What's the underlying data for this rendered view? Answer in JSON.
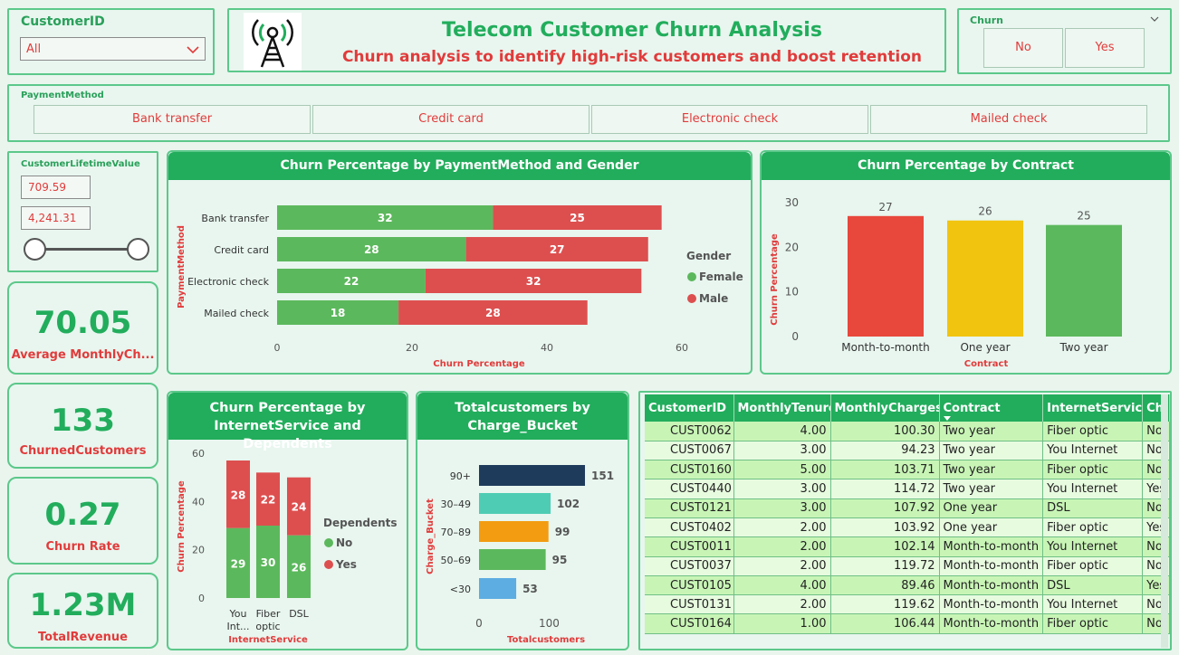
{
  "header": {
    "title": "Telecom Customer Churn Analysis",
    "subtitle": "Churn analysis to identify high-risk customers and boost retention"
  },
  "customer_slicer": {
    "label": "CustomerID",
    "selected": "All"
  },
  "churn_slicer": {
    "label": "Churn",
    "options": [
      "No",
      "Yes"
    ]
  },
  "payment_slicer": {
    "label": "PaymentMethod",
    "options": [
      "Bank transfer",
      "Credit card",
      "Electronic check",
      "Mailed check"
    ]
  },
  "clv_slicer": {
    "label": "CustomerLifetimeValue",
    "min": "709.59",
    "max": "4,241.31"
  },
  "kpis": [
    {
      "value": "70.05",
      "label": "Average MonthlyCh..."
    },
    {
      "value": "133",
      "label": "ChurnedCustomers"
    },
    {
      "value": "0.27",
      "label": "Churn Rate"
    },
    {
      "value": "1.23M",
      "label": "TotalRevenue"
    }
  ],
  "chart_data": [
    {
      "type": "bar",
      "orientation": "horizontal-stacked",
      "title": "Churn Percentage by PaymentMethod and Gender",
      "xlabel": "Churn Percentage",
      "ylabel": "PaymentMethod",
      "categories": [
        "Bank transfer",
        "Credit card",
        "Electronic check",
        "Mailed check"
      ],
      "series": [
        {
          "name": "Female",
          "values": [
            32,
            28,
            22,
            18
          ],
          "color": "#5cb85c"
        },
        {
          "name": "Male",
          "values": [
            25,
            27,
            32,
            28
          ],
          "color": "#dd4f4f"
        }
      ],
      "xlim": [
        0,
        60
      ],
      "xticks": [
        "0",
        "20",
        "40",
        "60"
      ],
      "legend_title": "Gender",
      "legend_position": "right"
    },
    {
      "type": "bar",
      "title": "Churn Percentage by Contract",
      "xlabel": "Contract",
      "ylabel": "Churn Percentage",
      "categories": [
        "Month-to-month",
        "One year",
        "Two year"
      ],
      "values": [
        27,
        26,
        25
      ],
      "colors": [
        "#e8473b",
        "#f1c40f",
        "#5cb85c"
      ],
      "ylim": [
        0,
        30
      ],
      "yticks": [
        "0",
        "10",
        "20",
        "30"
      ]
    },
    {
      "type": "bar",
      "orientation": "vertical-stacked",
      "title_line1": "Churn Percentage by",
      "title_line2": "InternetService and Dependents",
      "xlabel": "InternetService",
      "ylabel": "Churn Percentage",
      "categories": [
        [
          "You",
          "Int..."
        ],
        [
          "Fiber",
          "optic"
        ],
        [
          "DSL"
        ]
      ],
      "series": [
        {
          "name": "No",
          "values": [
            29,
            30,
            26
          ],
          "color": "#5cb85c"
        },
        {
          "name": "Yes",
          "values": [
            28,
            22,
            24
          ],
          "color": "#dd4f4f"
        }
      ],
      "ylim": [
        0,
        60
      ],
      "yticks": [
        "0",
        "20",
        "40",
        "60"
      ],
      "legend_title": "Dependents",
      "legend_position": "right"
    },
    {
      "type": "bar",
      "orientation": "horizontal",
      "title_line1": "Totalcustomers by",
      "title_line2": "Charge_Bucket",
      "xlabel": "Totalcustomers",
      "ylabel": "Charge_Bucket",
      "categories": [
        "90+",
        "30–49",
        "70–89",
        "50–69",
        "<30"
      ],
      "values": [
        151,
        102,
        99,
        95,
        53
      ],
      "colors": [
        "#1f3b5c",
        "#4ecdb4",
        "#f39c12",
        "#5cb85c",
        "#5dade2"
      ],
      "xlim": [
        0,
        151
      ],
      "xticks": [
        "0",
        "100"
      ]
    }
  ],
  "table": {
    "columns": [
      "CustomerID",
      "MonthlyTenure",
      "MonthlyCharges",
      "Contract",
      "InternetService",
      "Ch"
    ],
    "rows": [
      [
        "CUST0062",
        "4.00",
        "100.30",
        "Two year",
        "Fiber optic",
        "No"
      ],
      [
        "CUST0067",
        "3.00",
        "94.23",
        "Two year",
        "You Internet",
        "No"
      ],
      [
        "CUST0160",
        "5.00",
        "103.71",
        "Two year",
        "Fiber optic",
        "No"
      ],
      [
        "CUST0440",
        "3.00",
        "114.72",
        "Two year",
        "You Internet",
        "Yes"
      ],
      [
        "CUST0121",
        "3.00",
        "107.92",
        "One year",
        "DSL",
        "No"
      ],
      [
        "CUST0402",
        "2.00",
        "103.92",
        "One year",
        "Fiber optic",
        "Yes"
      ],
      [
        "CUST0011",
        "2.00",
        "102.14",
        "Month-to-month",
        "You Internet",
        "No"
      ],
      [
        "CUST0037",
        "2.00",
        "119.72",
        "Month-to-month",
        "Fiber optic",
        "No"
      ],
      [
        "CUST0105",
        "4.00",
        "89.46",
        "Month-to-month",
        "DSL",
        "Yes"
      ],
      [
        "CUST0131",
        "2.00",
        "119.62",
        "Month-to-month",
        "You Internet",
        "No"
      ],
      [
        "CUST0164",
        "1.00",
        "106.44",
        "Month-to-month",
        "Fiber optic",
        "No"
      ]
    ]
  }
}
